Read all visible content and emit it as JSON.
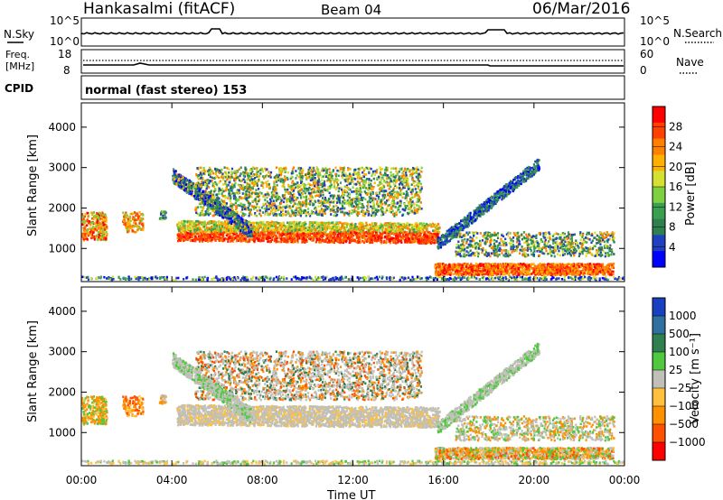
{
  "header": {
    "station": "Hankasalmi (fitACF)",
    "beam": "Beam 04",
    "date": "06/Mar/2016"
  },
  "top_panel": {
    "left_label": "N.Sky",
    "right_label": "N.Search",
    "left_ticks": [
      "10^5",
      "10^0"
    ],
    "right_ticks": [
      "10^5",
      "10^0"
    ]
  },
  "freq_panel": {
    "left_label_1": "Freq.",
    "left_label_2": "[MHz]",
    "right_label": "Nave",
    "left_ticks": [
      "18",
      "8"
    ],
    "right_ticks": [
      "60",
      "0"
    ]
  },
  "cpid": {
    "label": "CPID",
    "text": "normal (fast stereo) 153"
  },
  "colors": {
    "power": [
      "#0000ff",
      "#2040c0",
      "#2f7f4f",
      "#3aa050",
      "#7fd040",
      "#d6e030",
      "#ffb000",
      "#ff8000",
      "#ff4000",
      "#ff0000"
    ],
    "velocity": [
      "#1840c0",
      "#3070a0",
      "#2f7f4f",
      "#50c840",
      "#c0c0b8",
      "#ffc040",
      "#ff9000",
      "#ff5000",
      "#ff0000"
    ]
  },
  "chart_data": [
    {
      "type": "heatmap",
      "title": "Power",
      "ylabel": "Slant Range [km]",
      "xlabel": "",
      "x_ticks": [
        "00:00",
        "04:00",
        "08:00",
        "12:00",
        "16:00",
        "20:00",
        "00:00"
      ],
      "y_ticks": [
        "1000",
        "2000",
        "3000",
        "4000"
      ],
      "xlim_hours": [
        0,
        24
      ],
      "ylim_km": [
        180,
        4600
      ],
      "colorbar": {
        "label": "Power [dB]",
        "ticks": [
          "4",
          "8",
          "12",
          "16",
          "20",
          "24",
          "28"
        ]
      }
    },
    {
      "type": "heatmap",
      "title": "Velocity",
      "ylabel": "Slant Range [km]",
      "xlabel": "Time UT",
      "x_ticks": [
        "00:00",
        "04:00",
        "08:00",
        "12:00",
        "16:00",
        "20:00",
        "00:00"
      ],
      "y_ticks": [
        "1000",
        "2000",
        "3000",
        "4000"
      ],
      "xlim_hours": [
        0,
        24
      ],
      "ylim_km": [
        180,
        4600
      ],
      "colorbar": {
        "label": "Velocity [m s⁻¹]",
        "ticks": [
          "1000",
          "500",
          "100",
          "25",
          "−25",
          "−100",
          "−500",
          "−1000"
        ]
      }
    }
  ]
}
